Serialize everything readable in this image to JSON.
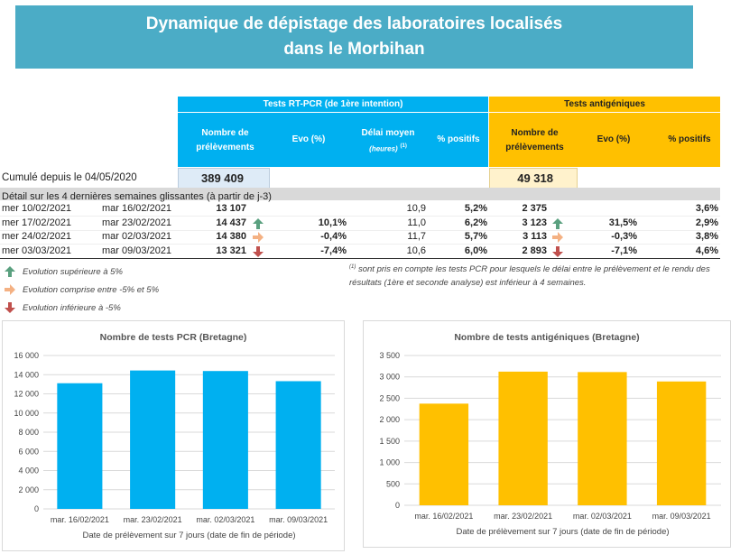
{
  "header": {
    "line1": "Dynamique de dépistage des laboratoires localisés",
    "line2": "dans le Morbihan"
  },
  "table": {
    "pcr_group": "Tests RT-PCR (de 1ère intention)",
    "ag_group": "Tests antigéniques",
    "col_nombre": "Nombre de prélèvements",
    "col_evo": "Evo (%)",
    "col_delai": "Délai moyen",
    "col_delai_sub": "(heures)",
    "col_delai_note": "(1)",
    "col_positifs": "% positifs",
    "col_ag_nombre": "Nombre de prélèvements",
    "col_ag_evo": "Evo (%)",
    "col_ag_positifs": "%  positifs",
    "cumul_label": "Cumulé depuis le 04/05/2020",
    "cumul_pcr": "389 409",
    "cumul_ag": "49 318",
    "detail_label": "Détail sur les 4 dernières semaines glissantes (à partir de j-3)",
    "rows": [
      {
        "start": "mer 10/02/2021",
        "end": "mar 16/02/2021",
        "pcr": "13 107",
        "pcr_arrow": "",
        "pcr_evo": "",
        "delai": "10,9",
        "pos": "5,2%",
        "ag": "2 375",
        "ag_arrow": "",
        "ag_evo": "",
        "ag_pos": "3,6%"
      },
      {
        "start": "mer 17/02/2021",
        "end": "mar 23/02/2021",
        "pcr": "14 437",
        "pcr_arrow": "up",
        "pcr_evo": "10,1%",
        "delai": "11,0",
        "pos": "6,2%",
        "ag": "3 123",
        "ag_arrow": "up",
        "ag_evo": "31,5%",
        "ag_pos": "2,9%"
      },
      {
        "start": "mer 24/02/2021",
        "end": "mar 02/03/2021",
        "pcr": "14 380",
        "pcr_arrow": "flat",
        "pcr_evo": "-0,4%",
        "delai": "11,7",
        "pos": "5,7%",
        "ag": "3 113",
        "ag_arrow": "flat",
        "ag_evo": "-0,3%",
        "ag_pos": "3,8%"
      },
      {
        "start": "mer 03/03/2021",
        "end": "mar 09/03/2021",
        "pcr": "13 321",
        "pcr_arrow": "down",
        "pcr_evo": "-7,4%",
        "delai": "10,6",
        "pos": "6,0%",
        "ag": "2 893",
        "ag_arrow": "down",
        "ag_evo": "-7,1%",
        "ag_pos": "4,6%"
      }
    ]
  },
  "legend": {
    "up": "Evolution supérieure à 5%",
    "flat": "Evolution comprise entre -5% et 5%",
    "down": "Evolution inférieure à -5%",
    "footnote_mark": "(1)",
    "footnote": "sont pris en compte les tests PCR pour lesquels le délai entre le prélèvement et le rendu des résultats (1ère et seconde analyse) est inférieur à 4 semaines."
  },
  "colors": {
    "pcr": "#00b0f0",
    "ag": "#ffc000",
    "up": "#5aa07f",
    "flat": "#f4b183",
    "down": "#c0504d"
  },
  "chart_data": [
    {
      "type": "bar",
      "title": "Nombre de tests PCR (Bretagne)",
      "xlabel": "Date de prélèvement sur 7 jours (date de fin de période)",
      "ylabel": "",
      "categories": [
        "mar. 16/02/2021",
        "mar. 23/02/2021",
        "mar. 02/03/2021",
        "mar. 09/03/2021"
      ],
      "values": [
        13107,
        14437,
        14380,
        13321
      ],
      "ylim": [
        0,
        16000
      ],
      "yticks": [
        0,
        2000,
        4000,
        6000,
        8000,
        10000,
        12000,
        14000,
        16000
      ],
      "ytick_labels": [
        "0",
        "2 000",
        "4 000",
        "6 000",
        "8 000",
        "10 000",
        "12 000",
        "14 000",
        "16 000"
      ],
      "color": "#00b0f0",
      "grid": true
    },
    {
      "type": "bar",
      "title": "Nombre de tests antigéniques (Bretagne)",
      "xlabel": "Date de prélèvement sur 7 jours (date de fin de période)",
      "ylabel": "",
      "categories": [
        "mar. 16/02/2021",
        "mar. 23/02/2021",
        "mar. 02/03/2021",
        "mar. 09/03/2021"
      ],
      "values": [
        2375,
        3123,
        3113,
        2893
      ],
      "ylim": [
        0,
        3500
      ],
      "yticks": [
        0,
        500,
        1000,
        1500,
        2000,
        2500,
        3000,
        3500
      ],
      "ytick_labels": [
        "0",
        "500",
        "1 000",
        "1 500",
        "2 000",
        "2 500",
        "3 000",
        "3 500"
      ],
      "color": "#ffc000",
      "grid": true
    }
  ]
}
